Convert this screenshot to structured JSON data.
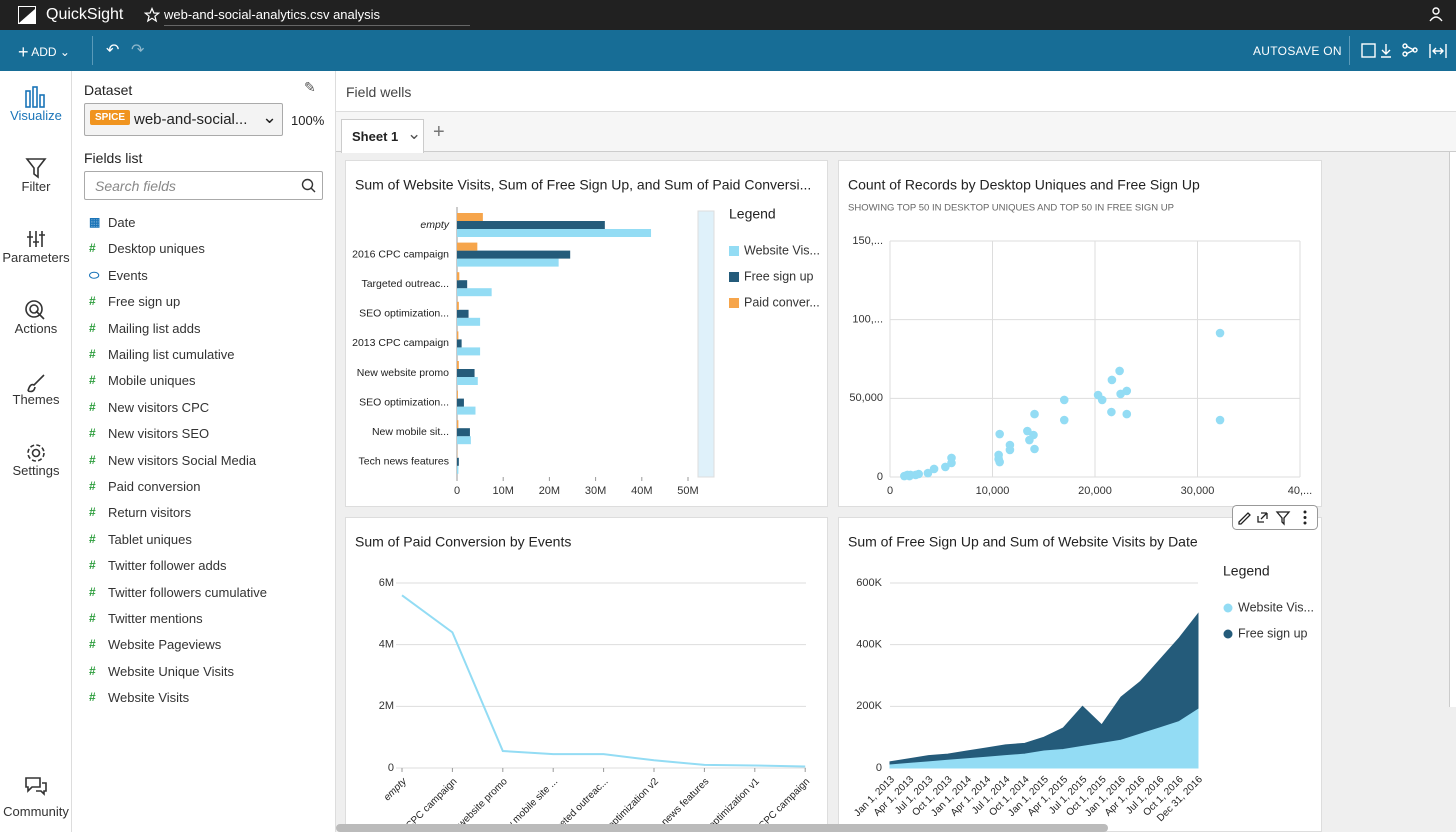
{
  "header": {
    "app": "QuickSight",
    "file": "web-and-social-analytics.csv analysis"
  },
  "toolbar": {
    "add": "ADD",
    "autosave": "AUTOSAVE ON"
  },
  "nav": {
    "items": [
      "Visualize",
      "Filter",
      "Parameters",
      "Actions",
      "Themes",
      "Settings"
    ],
    "community": "Community"
  },
  "panel": {
    "dataset_label": "Dataset",
    "badge": "SPICE",
    "dataset": "web-and-social...",
    "zoom": "100%",
    "fields_label": "Fields list",
    "search": "Search fields",
    "fields": [
      {
        "name": "Date",
        "type": "date"
      },
      {
        "name": "Desktop uniques",
        "type": "number"
      },
      {
        "name": "Events",
        "type": "text"
      },
      {
        "name": "Free sign up",
        "type": "number"
      },
      {
        "name": "Mailing list adds",
        "type": "number"
      },
      {
        "name": "Mailing list cumulative",
        "type": "number"
      },
      {
        "name": "Mobile uniques",
        "type": "number"
      },
      {
        "name": "New visitors CPC",
        "type": "number"
      },
      {
        "name": "New visitors SEO",
        "type": "number"
      },
      {
        "name": "New visitors Social Media",
        "type": "number"
      },
      {
        "name": "Paid conversion",
        "type": "number"
      },
      {
        "name": "Return visitors",
        "type": "number"
      },
      {
        "name": "Tablet uniques",
        "type": "number"
      },
      {
        "name": "Twitter follower adds",
        "type": "number"
      },
      {
        "name": "Twitter followers cumulative",
        "type": "number"
      },
      {
        "name": "Twitter mentions",
        "type": "number"
      },
      {
        "name": "Website Pageviews",
        "type": "number"
      },
      {
        "name": "Website Unique Visits",
        "type": "number"
      },
      {
        "name": "Website Visits",
        "type": "number"
      }
    ]
  },
  "main": {
    "field_wells": "Field wells",
    "sheet": "Sheet 1"
  },
  "visuals": [
    {
      "type": "hbar",
      "title": "Sum of Website Visits, Sum of Free Sign Up, and Sum of Paid Conversi...",
      "categories": [
        "empty",
        "2016 CPC campaign",
        "Targeted outreac...",
        "SEO optimization...",
        "2013 CPC campaign",
        "New website promo",
        "SEO optimization...",
        "New mobile sit...",
        "Tech news features"
      ],
      "series": [
        {
          "name": "Website Vis...",
          "color": "#93dcf4",
          "values": [
            42000000,
            22000000,
            7500000,
            5000000,
            5000000,
            4500000,
            4000000,
            3000000,
            300000
          ]
        },
        {
          "name": "Free sign up",
          "color": "#245b7a",
          "values": [
            32000000,
            24500000,
            2200000,
            2500000,
            1000000,
            3800000,
            1500000,
            2800000,
            400000
          ]
        },
        {
          "name": "Paid conver...",
          "color": "#f6a54b",
          "values": [
            5600000,
            4400000,
            500000,
            400000,
            300000,
            400000,
            200000,
            300000,
            50000
          ]
        }
      ],
      "xlim": [
        0,
        50000000
      ],
      "xticks": [
        0,
        {
          "value": 10000000,
          "label": "10M"
        },
        {
          "value": 20000000,
          "label": "20M"
        },
        {
          "value": 30000000,
          "label": "30M"
        },
        {
          "value": 40000000,
          "label": "40M"
        },
        {
          "value": 50000000,
          "label": "50M"
        }
      ],
      "legend_title": "Legend"
    },
    {
      "type": "scatter",
      "title": "Count of Records by Desktop Uniques and Free Sign Up",
      "subtitle": "SHOWING TOP 50 IN DESKTOP UNIQUES AND TOP 50 IN FREE SIGN UP",
      "color": "#93dcf4",
      "x": [
        32200,
        32200,
        21650,
        22400,
        23100,
        22500,
        20300,
        20700,
        21600,
        23100,
        17000,
        17000,
        14100,
        14000,
        13400,
        13600,
        14100,
        11700,
        11700,
        10700,
        10600,
        10700,
        10600,
        6000,
        6000,
        5400,
        4300,
        3700,
        2800,
        2000,
        1700,
        1400,
        1900,
        2500
      ],
      "values": [
        91500,
        36200,
        61700,
        67400,
        54700,
        52800,
        52100,
        49000,
        41300,
        40000,
        49000,
        36200,
        40000,
        26700,
        29200,
        23500,
        17800,
        20300,
        17200,
        27300,
        14000,
        9500,
        11400,
        12100,
        8900,
        6400,
        5100,
        2500,
        1900,
        1300,
        1300,
        600,
        600,
        1300
      ],
      "xlim": [
        0,
        40000
      ],
      "ylim": [
        0,
        150000
      ],
      "xticks": [
        0,
        {
          "value": 10000,
          "label": "10,000"
        },
        {
          "value": 20000,
          "label": "20,000"
        },
        {
          "value": 30000,
          "label": "30,000"
        },
        {
          "value": 40000,
          "label": "40,..."
        }
      ],
      "yticks": [
        0,
        {
          "value": 50000,
          "label": "50,000"
        },
        {
          "value": 100000,
          "label": "100,..."
        },
        {
          "value": 150000,
          "label": "150,..."
        }
      ],
      "grid": true
    },
    {
      "type": "line",
      "title": "Sum of Paid Conversion by Events",
      "color": "#93dcf4",
      "categories": [
        "empty",
        "CPC campaign",
        "website promo",
        "w mobile site ...",
        "rgeted outreac...",
        "optimization v2",
        "s news features",
        "optimization v1",
        "CPC campaign"
      ],
      "values": [
        5600000,
        4400000,
        550000,
        450000,
        450000,
        250000,
        100000,
        80000,
        50000
      ],
      "ylim": [
        0,
        6000000
      ],
      "yticks": [
        0,
        {
          "value": 2000000,
          "label": "2M"
        },
        {
          "value": 4000000,
          "label": "4M"
        },
        {
          "value": 6000000,
          "label": "6M"
        }
      ],
      "grid": true
    },
    {
      "type": "area",
      "title": "Sum of Free Sign Up and Sum of Website Visits by Date",
      "categories": [
        "Jan 1, 2013",
        "Apr 1, 2013",
        "Jul 1, 2013",
        "Oct 1, 2013",
        "Jan 1, 2014",
        "Apr 1, 2014",
        "Jul 1, 2014",
        "Oct 1, 2014",
        "Jan 1, 2015",
        "Apr 1, 2015",
        "Jul 1, 2015",
        "Oct 1, 2015",
        "Jan 1, 2016",
        "Apr 1, 2016",
        "Jul 1, 2016",
        "Oct 1, 2016",
        "Dec 31, 2016"
      ],
      "series": [
        {
          "name": "Website Vis...",
          "color": "#93dcf4",
          "values": [
            10000,
            15000,
            20000,
            25000,
            30000,
            35000,
            40000,
            45000,
            55000,
            60000,
            70000,
            80000,
            90000,
            110000,
            130000,
            150000,
            190000
          ]
        },
        {
          "name": "Free sign up",
          "color": "#245b7a",
          "values": [
            20000,
            30000,
            40000,
            45000,
            55000,
            65000,
            75000,
            80000,
            100000,
            130000,
            200000,
            140000,
            230000,
            280000,
            350000,
            420000,
            500000
          ]
        }
      ],
      "ylim": [
        0,
        600000
      ],
      "yticks": [
        0,
        {
          "value": 200000,
          "label": "200K"
        },
        {
          "value": 400000,
          "label": "400K"
        },
        {
          "value": 600000,
          "label": "600K"
        }
      ],
      "legend_title": "Legend",
      "grid": true
    }
  ]
}
